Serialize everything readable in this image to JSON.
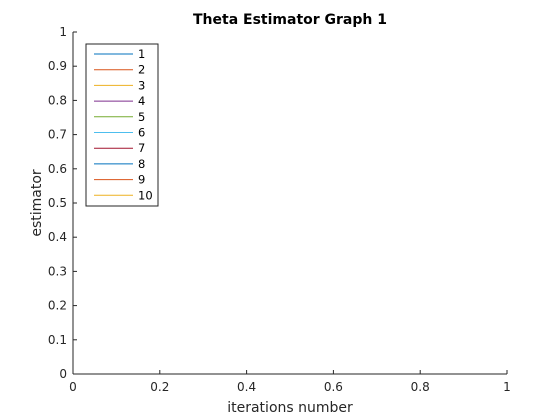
{
  "chart_data": {
    "type": "line",
    "title": "Theta Estimator Graph 1",
    "xlabel": "iterations number",
    "ylabel": "estimator",
    "xlim": [
      0,
      1
    ],
    "ylim": [
      0,
      1
    ],
    "xticks": [
      0,
      0.2,
      0.4,
      0.6,
      0.8,
      1
    ],
    "xtick_labels": [
      "0",
      "0.2",
      "0.4",
      "0.6",
      "0.8",
      "1"
    ],
    "yticks": [
      0,
      0.1,
      0.2,
      0.3,
      0.4,
      0.5,
      0.6,
      0.7,
      0.8,
      0.9,
      1
    ],
    "ytick_labels": [
      "0",
      "0.1",
      "0.2",
      "0.3",
      "0.4",
      "0.5",
      "0.6",
      "0.7",
      "0.8",
      "0.9",
      "1"
    ],
    "grid": false,
    "legend_position": "top-left",
    "series": [
      {
        "name": "1",
        "color": "#0072BD",
        "x": [],
        "y": []
      },
      {
        "name": "2",
        "color": "#D95319",
        "x": [],
        "y": []
      },
      {
        "name": "3",
        "color": "#EDB120",
        "x": [],
        "y": []
      },
      {
        "name": "4",
        "color": "#7E2F8E",
        "x": [],
        "y": []
      },
      {
        "name": "5",
        "color": "#77AC30",
        "x": [],
        "y": []
      },
      {
        "name": "6",
        "color": "#4DBEEE",
        "x": [],
        "y": []
      },
      {
        "name": "7",
        "color": "#A2142F",
        "x": [],
        "y": []
      },
      {
        "name": "8",
        "color": "#0072BD",
        "x": [],
        "y": []
      },
      {
        "name": "9",
        "color": "#D95319",
        "x": [],
        "y": []
      },
      {
        "name": "10",
        "color": "#EDB120",
        "x": [],
        "y": []
      }
    ]
  }
}
